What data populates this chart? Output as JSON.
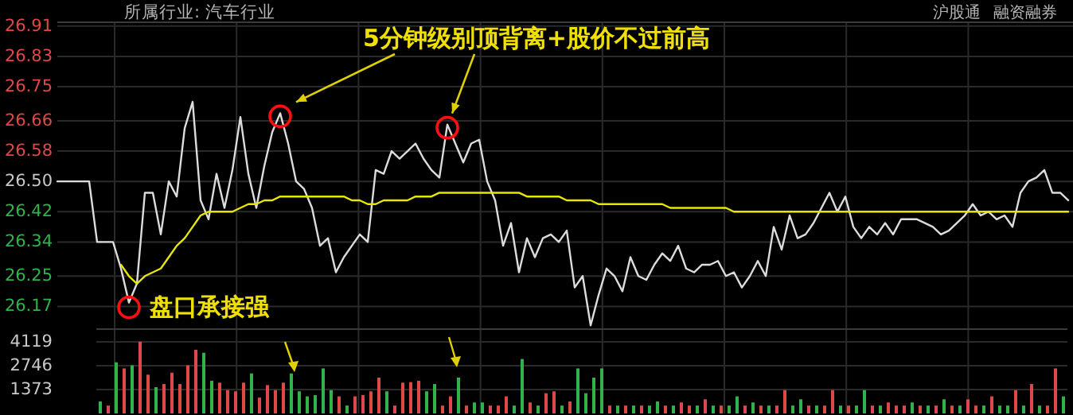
{
  "chart_data": [
    {
      "type": "line",
      "title": "所属行业: 汽车行业",
      "annotations": [
        "5分钟级别顶背离+股价不过前高",
        "沪股通",
        "融资融券",
        "盘口承接强"
      ],
      "ylim": [
        26.11,
        26.92
      ],
      "yticks": [
        26.17,
        26.25,
        26.34,
        26.42,
        {
          "value": 26.5,
          "label": "26.50"
        },
        26.58,
        26.66,
        26.75,
        26.83,
        26.91
      ],
      "grid": true,
      "tick_labels": "y",
      "marker": "none",
      "categories": [
        null,
        null,
        null,
        null,
        null,
        null,
        null,
        null,
        null,
        null,
        null,
        null,
        null,
        null,
        null,
        null,
        null,
        null,
        null,
        null,
        null,
        null,
        null,
        null,
        null,
        null,
        null,
        null,
        null,
        null,
        null,
        null,
        null,
        null,
        null,
        null,
        null,
        null,
        null,
        null,
        null,
        null,
        null,
        null,
        null,
        null,
        null,
        null,
        null,
        null,
        null,
        null,
        null,
        null,
        null,
        null,
        null,
        null,
        null,
        null,
        null,
        null,
        null,
        null,
        null,
        null,
        null,
        null,
        null,
        null,
        null,
        null,
        null,
        null,
        null,
        null,
        null,
        null,
        null,
        null,
        null,
        null,
        null,
        null,
        null,
        null,
        null,
        null,
        null,
        null,
        null,
        null,
        null,
        null,
        null,
        null,
        null,
        null,
        null,
        null,
        null,
        null,
        null,
        null,
        null,
        null,
        null,
        null,
        null,
        null,
        null,
        null,
        null,
        null,
        null,
        null,
        null,
        null,
        null,
        null,
        null,
        null,
        null,
        null,
        null,
        null,
        null,
        null
      ],
      "series": [
        {
          "color": "#dcdcdc",
          "values": [
            26.5,
            26.5,
            26.5,
            26.5,
            26.5,
            26.34,
            26.34,
            26.34,
            26.27,
            26.18,
            26.23,
            26.47,
            26.47,
            26.36,
            26.5,
            26.46,
            26.64,
            26.71,
            26.45,
            26.4,
            26.52,
            26.43,
            26.53,
            26.67,
            26.52,
            26.43,
            26.54,
            26.63,
            26.68,
            26.6,
            26.5,
            26.48,
            26.43,
            26.33,
            26.35,
            26.26,
            26.3,
            26.33,
            26.36,
            26.34,
            26.53,
            26.52,
            26.58,
            26.56,
            26.58,
            26.6,
            26.56,
            26.53,
            26.51,
            26.65,
            26.6,
            26.55,
            26.6,
            26.61,
            26.5,
            26.45,
            26.33,
            26.39,
            26.26,
            26.35,
            26.3,
            26.35,
            26.36,
            26.34,
            26.37,
            26.22,
            26.25,
            26.12,
            26.2,
            26.27,
            26.25,
            26.21,
            26.3,
            26.25,
            26.24,
            26.28,
            26.31,
            26.29,
            26.33,
            26.27,
            26.26,
            26.28,
            26.28,
            26.29,
            26.25,
            26.26,
            26.22,
            26.25,
            26.29,
            26.25,
            26.38,
            26.32,
            26.41,
            26.35,
            26.36,
            26.39,
            26.43,
            26.47,
            26.42,
            26.46,
            26.38,
            26.35,
            26.38,
            26.36,
            26.39,
            26.36,
            26.4,
            26.4,
            26.4,
            26.39,
            26.38,
            26.36,
            26.37,
            26.39,
            26.41,
            26.44,
            26.41,
            26.42,
            26.4,
            26.41,
            26.38,
            26.47,
            26.5,
            26.51,
            26.53,
            26.47,
            26.47,
            26.45
          ]
        },
        {
          "color": "#e6e600",
          "values": [
            null,
            null,
            null,
            null,
            null,
            null,
            null,
            null,
            26.28,
            26.25,
            26.23,
            26.25,
            26.26,
            26.27,
            26.3,
            26.33,
            26.35,
            26.38,
            26.41,
            26.42,
            26.42,
            26.42,
            26.42,
            26.43,
            26.44,
            26.44,
            26.45,
            26.45,
            26.46,
            26.46,
            26.46,
            26.46,
            26.46,
            26.46,
            26.46,
            26.46,
            26.46,
            26.45,
            26.45,
            26.44,
            26.44,
            26.45,
            26.45,
            26.45,
            26.45,
            26.46,
            26.46,
            26.46,
            26.47,
            26.47,
            26.47,
            26.47,
            26.47,
            26.47,
            26.47,
            26.47,
            26.47,
            26.47,
            26.47,
            26.46,
            26.46,
            26.46,
            26.46,
            26.46,
            26.45,
            26.45,
            26.45,
            26.45,
            26.44,
            26.44,
            26.44,
            26.44,
            26.44,
            26.44,
            26.44,
            26.44,
            26.44,
            26.43,
            26.43,
            26.43,
            26.43,
            26.43,
            26.43,
            26.43,
            26.43,
            26.42,
            26.42,
            26.42,
            26.42,
            26.42,
            26.42,
            26.42,
            26.42,
            26.42,
            26.42,
            26.42,
            26.42,
            26.42,
            26.42,
            26.42,
            26.42,
            26.42,
            26.42,
            26.42,
            26.42,
            26.42,
            26.42,
            26.42,
            26.42,
            26.42,
            26.42,
            26.42,
            26.42,
            26.42,
            26.42,
            26.42,
            26.42,
            26.42,
            26.42,
            26.42,
            26.42,
            26.42,
            26.42,
            26.42,
            26.42,
            26.42,
            26.42,
            26.42
          ]
        }
      ]
    },
    {
      "type": "bar",
      "ylim": [
        0,
        4850
      ],
      "yticks": [
        1373,
        2746,
        4119
      ],
      "grid": true,
      "tick_labels": "y",
      "categories": [
        null,
        null,
        null,
        null,
        null,
        null,
        null,
        null,
        null,
        null,
        null,
        null,
        null,
        null,
        null,
        null,
        null,
        null,
        null,
        null,
        null,
        null,
        null,
        null,
        null,
        null,
        null,
        null,
        null,
        null,
        null,
        null,
        null,
        null,
        null,
        null,
        null,
        null,
        null,
        null,
        null,
        null,
        null,
        null,
        null,
        null,
        null,
        null,
        null,
        null,
        null,
        null,
        null,
        null,
        null,
        null,
        null,
        null,
        null,
        null,
        null,
        null,
        null,
        null,
        null,
        null,
        null,
        null,
        null,
        null,
        null,
        null,
        null,
        null,
        null,
        null,
        null,
        null,
        null,
        null,
        null,
        null,
        null,
        null,
        null,
        null,
        null,
        null,
        null,
        null,
        null,
        null,
        null,
        null,
        null,
        null,
        null,
        null,
        null,
        null,
        null,
        null,
        null,
        null,
        null,
        null,
        null,
        null,
        null,
        null,
        null,
        null,
        null,
        null,
        null,
        null,
        null,
        null,
        null,
        null,
        null,
        null
      ],
      "values": [
        690,
        450,
        2940,
        2590,
        2770,
        4130,
        2230,
        1510,
        1690,
        2340,
        1690,
        2770,
        3660,
        3490,
        1880,
        1770,
        1340,
        1270,
        1770,
        2300,
        910,
        1630,
        1340,
        1770,
        2300,
        1270,
        980,
        1050,
        2590,
        1340,
        980,
        450,
        980,
        1050,
        1270,
        2060,
        1270,
        450,
        1770,
        1800,
        1880,
        1270,
        1690,
        450,
        980,
        2060,
        450,
        630,
        630,
        450,
        450,
        980,
        450,
        3130,
        630,
        450,
        1160,
        1270,
        450,
        690,
        2590,
        1160,
        2060,
        2590,
        450,
        450,
        450,
        450,
        450,
        450,
        690,
        450,
        450,
        630,
        450,
        450,
        810,
        450,
        450,
        450,
        980,
        450,
        630,
        450,
        450,
        450,
        1340,
        450,
        810,
        450,
        450,
        450,
        1340,
        450,
        450,
        450,
        1340,
        450,
        450,
        630,
        450,
        450,
        630,
        450,
        450,
        450,
        810,
        450,
        450,
        810,
        450,
        450,
        980,
        450,
        450,
        1340,
        450,
        1690,
        450,
        450,
        2590,
        980
      ],
      "colors": [
        "#2fb34a",
        "#e04848",
        "#2fb34a",
        "#e04848",
        "#2fb34a",
        "#e04848",
        "#e04848",
        "#2fb34a",
        "#e04848",
        "#e04848",
        "#e04848",
        "#e04848",
        "#e04848",
        "#2fb34a",
        "#2fb34a",
        "#e04848",
        "#e04848",
        "#e04848",
        "#e04848",
        "#2fb34a",
        "#e04848",
        "#e04848",
        "#e04848",
        "#e04848",
        "#2fb34a",
        "#2fb34a",
        "#2fb34a",
        "#2fb34a",
        "#2fb34a",
        "#2fb34a",
        "#e04848",
        "#2fb34a",
        "#e04848",
        "#e04848",
        "#e04848",
        "#e04848",
        "#2fb34a",
        "#e04848",
        "#e04848",
        "#e04848",
        "#e04848",
        "#2fb34a",
        "#2fb34a",
        "#e04848",
        "#e04848",
        "#2fb34a",
        "#e04848",
        "#2fb34a",
        "#2fb34a",
        "#e04848",
        "#e04848",
        "#e04848",
        "#2fb34a",
        "#2fb34a",
        "#e04848",
        "#2fb34a",
        "#e04848",
        "#e04848",
        "#2fb34a",
        "#e04848",
        "#2fb34a",
        "#2fb34a",
        "#2fb34a",
        "#2fb34a",
        "#e04848",
        "#2fb34a",
        "#e04848",
        "#2fb34a",
        "#e04848",
        "#2fb34a",
        "#2fb34a",
        "#e04848",
        "#2fb34a",
        "#e04848",
        "#e04848",
        "#2fb34a",
        "#e04848",
        "#2fb34a",
        "#e04848",
        "#2fb34a",
        "#2fb34a",
        "#e04848",
        "#2fb34a",
        "#e04848",
        "#2fb34a",
        "#e04848",
        "#e04848",
        "#2fb34a",
        "#2fb34a",
        "#e04848",
        "#2fb34a",
        "#e04848",
        "#e04848",
        "#2fb34a",
        "#e04848",
        "#2fb34a",
        "#2fb34a",
        "#e04848",
        "#2fb34a",
        "#e04848",
        "#e04848",
        "#e04848",
        "#2fb34a",
        "#e04848",
        "#2fb34a",
        "#e04848",
        "#2fb34a",
        "#e04848",
        "#2fb34a",
        "#e04848",
        "#e04848",
        "#2fb34a",
        "#e04848",
        "#2fb34a",
        "#2fb34a",
        "#e04848",
        "#2fb34a",
        "#e04848",
        "#2fb34a",
        "#e04848",
        "#e04848",
        "#2fb34a"
      ]
    }
  ]
}
